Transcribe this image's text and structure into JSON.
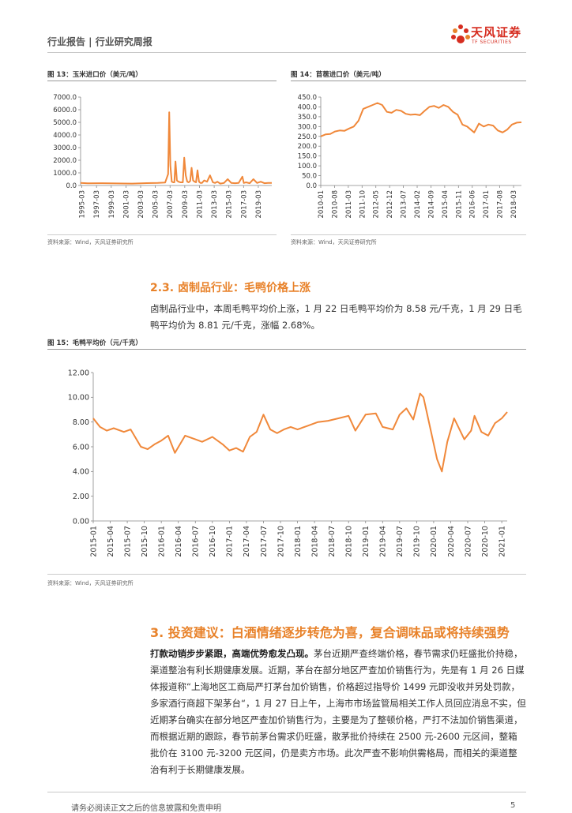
{
  "header": {
    "left_text": "行业报告 | 行业研究周报",
    "logo_cn": "天风证券",
    "logo_en": "TF SECURITIES"
  },
  "figure13": {
    "title": "图 13：玉米进口价（美元/吨）",
    "source": "资料来源：Wind，天风证券研究所"
  },
  "figure14": {
    "title": "图 14：苜蓿进口价（美元/吨）",
    "source": "资料来源：Wind，天风证券研究所"
  },
  "section23": {
    "title": "2.3. 卤制品行业：毛鸭价格上涨",
    "body": "卤制品行业中，本周毛鸭平均价上涨，1 月 22 日毛鸭平均价为 8.58 元/千克，1 月 29 日毛鸭平均价为 8.81 元/千克，涨幅 2.68%。"
  },
  "figure15": {
    "title": "图 15：毛鸭平均价（元/千克）",
    "source": "资料来源：Wind，天风证券研究所"
  },
  "section3": {
    "title": "3. 投资建议：白酒情绪逐步转危为喜，复合调味品或将持续强势",
    "bold_lead": "打款动销步步紧跟，高端优势愈发凸现。",
    "body": "茅台近期严查终端价格，春节需求仍旺盛批价持稳，渠道整治有利长期健康发展。近期，茅台在部分地区严查加价销售行为，先是有 1 月 26 日媒体报道称“上海地区工商局严打茅台加价销售，价格超过指导价 1499 元即没收并另处罚款，多家酒行商超下架茅台“，1 月 27 日上午，上海市市场监管局相关工作人员回应消息不实，但近期茅台确实在部分地区严查加价销售行为，主要是为了整顿价格，严打不法加价销售渠道，而根据近期的跟踪，春节前茅台需求仍旺盛，散茅批价持续在 2500 元-2600 元区间，整箱批价在 3100 元-3200 元区间，仍是卖方市场。此次严查不影响供需格局，而相关的渠道整治有利于长期健康发展。"
  },
  "footer": {
    "disclaimer": "请务必阅读正文之后的信息披露和免责申明",
    "page": "5"
  },
  "colors": {
    "line": "#f0883a",
    "accent": "#e8822a",
    "brand": "#d62d20"
  },
  "chart_data": [
    {
      "type": "line",
      "title": "图 13：玉米进口价（美元/吨）",
      "x_ticks": [
        "1995-03",
        "1997-03",
        "1999-03",
        "2001-03",
        "2003-03",
        "2005-03",
        "2007-03",
        "2009-03",
        "2011-03",
        "2013-03",
        "2015-03",
        "2017-03",
        "2019-03"
      ],
      "y_ticks": [
        "0.0",
        "1000.0",
        "2000.0",
        "3000.0",
        "4000.0",
        "5000.0",
        "6000.0",
        "7000.0"
      ],
      "ylim": [
        0,
        7000
      ],
      "x_range": [
        1995.0,
        2021.0
      ],
      "series": [
        {
          "x": [
            1995.0,
            1996.0,
            1998.0,
            2000.0,
            2002.0,
            2004.0,
            2005.5,
            2006.5,
            2006.9,
            2007.05,
            2007.2,
            2007.4,
            2007.6,
            2007.75,
            2007.9,
            2008.1,
            2008.3,
            2008.6,
            2008.9,
            2009.1,
            2009.3,
            2009.5,
            2009.7,
            2009.9,
            2010.1,
            2010.3,
            2010.5,
            2010.7,
            2010.9,
            2011.1,
            2011.3,
            2011.5,
            2011.8,
            2012.2,
            2012.6,
            2013.0,
            2013.3,
            2013.6,
            2014.0,
            2014.5,
            2015.0,
            2015.5,
            2016.0,
            2016.5,
            2017.0,
            2017.2,
            2017.5,
            2018.0,
            2018.5,
            2019.0,
            2019.5,
            2020.0,
            2020.5,
            2021.0
          ],
          "y": [
            200,
            170,
            180,
            160,
            150,
            190,
            200,
            230,
            900,
            5800,
            1600,
            300,
            250,
            250,
            1900,
            400,
            300,
            250,
            250,
            2200,
            800,
            300,
            250,
            350,
            1400,
            400,
            300,
            250,
            1200,
            300,
            200,
            200,
            400,
            300,
            800,
            250,
            200,
            300,
            150,
            200,
            500,
            200,
            180,
            200,
            700,
            200,
            250,
            180,
            500,
            200,
            300,
            180,
            200,
            200
          ]
        }
      ]
    },
    {
      "type": "line",
      "title": "图 14：苜蓿进口价（美元/吨）",
      "x_ticks": [
        "2010-01",
        "2010-08",
        "2011-03",
        "2011-10",
        "2012-05",
        "2012-12",
        "2013-07",
        "2014-02",
        "2014-09",
        "2015-04",
        "2015-11",
        "2016-06",
        "2017-01",
        "2017-08",
        "2018-03"
      ],
      "y_ticks": [
        "0.0",
        "50.0",
        "100.0",
        "150.0",
        "200.0",
        "250.0",
        "300.0",
        "350.0",
        "400.0",
        "450.0"
      ],
      "ylim": [
        0,
        450
      ],
      "x_range": [
        2010.0,
        2018.5
      ],
      "series": [
        {
          "x": [
            2010.0,
            2010.2,
            2010.4,
            2010.6,
            2010.8,
            2011.0,
            2011.2,
            2011.4,
            2011.6,
            2011.8,
            2012.0,
            2012.2,
            2012.4,
            2012.6,
            2012.8,
            2013.0,
            2013.2,
            2013.4,
            2013.6,
            2013.8,
            2014.0,
            2014.2,
            2014.4,
            2014.6,
            2014.8,
            2015.0,
            2015.2,
            2015.4,
            2015.6,
            2015.8,
            2016.0,
            2016.2,
            2016.4,
            2016.5,
            2016.7,
            2016.9,
            2017.1,
            2017.3,
            2017.5,
            2017.7,
            2017.9,
            2018.1,
            2018.3,
            2018.5
          ],
          "y": [
            250,
            260,
            262,
            275,
            280,
            278,
            290,
            300,
            330,
            390,
            400,
            410,
            420,
            410,
            375,
            370,
            385,
            380,
            365,
            360,
            362,
            358,
            380,
            400,
            405,
            395,
            410,
            400,
            375,
            360,
            310,
            300,
            280,
            270,
            315,
            300,
            310,
            305,
            280,
            270,
            285,
            310,
            320,
            322
          ]
        }
      ]
    },
    {
      "type": "line",
      "title": "图 15：毛鸭平均价（元/千克）",
      "x_ticks": [
        "2015-01",
        "2015-04",
        "2015-07",
        "2015-10",
        "2016-01",
        "2016-04",
        "2016-07",
        "2016-10",
        "2017-01",
        "2017-04",
        "2017-07",
        "2017-10",
        "2018-01",
        "2018-04",
        "2018-07",
        "2018-10",
        "2019-01",
        "2019-04",
        "2019-07",
        "2019-10",
        "2020-01",
        "2020-04",
        "2020-07",
        "2020-10",
        "2021-01"
      ],
      "y_ticks": [
        "0.00",
        "2.00",
        "4.00",
        "6.00",
        "8.00",
        "10.00",
        "12.00"
      ],
      "ylim": [
        0,
        12
      ],
      "x_range": [
        2015.0,
        2021.08
      ],
      "series": [
        {
          "x": [
            2015.0,
            2015.1,
            2015.2,
            2015.3,
            2015.45,
            2015.55,
            2015.7,
            2015.8,
            2015.9,
            2016.0,
            2016.1,
            2016.2,
            2016.35,
            2016.5,
            2016.6,
            2016.75,
            2016.9,
            2017.0,
            2017.1,
            2017.2,
            2017.3,
            2017.4,
            2017.5,
            2017.6,
            2017.7,
            2017.8,
            2017.9,
            2018.0,
            2018.15,
            2018.3,
            2018.45,
            2018.6,
            2018.75,
            2018.85,
            2019.0,
            2019.15,
            2019.25,
            2019.4,
            2019.5,
            2019.6,
            2019.7,
            2019.8,
            2019.85,
            2019.95,
            2020.05,
            2020.12,
            2020.2,
            2020.3,
            2020.45,
            2020.55,
            2020.6,
            2020.7,
            2020.8,
            2020.9,
            2021.0,
            2021.08
          ],
          "y": [
            8.3,
            7.6,
            7.3,
            7.5,
            7.2,
            7.4,
            6.0,
            5.8,
            6.2,
            6.5,
            6.9,
            5.5,
            6.9,
            6.6,
            6.4,
            6.8,
            6.2,
            5.7,
            5.9,
            5.6,
            6.8,
            7.2,
            8.6,
            7.4,
            7.1,
            7.4,
            7.6,
            7.4,
            7.7,
            8.0,
            8.1,
            8.3,
            8.5,
            7.3,
            8.6,
            8.7,
            7.6,
            7.4,
            8.6,
            9.1,
            8.2,
            10.3,
            10.0,
            7.5,
            5.0,
            4.0,
            6.4,
            8.3,
            6.6,
            7.3,
            8.5,
            7.2,
            6.9,
            7.9,
            8.3,
            8.81
          ]
        }
      ]
    }
  ]
}
